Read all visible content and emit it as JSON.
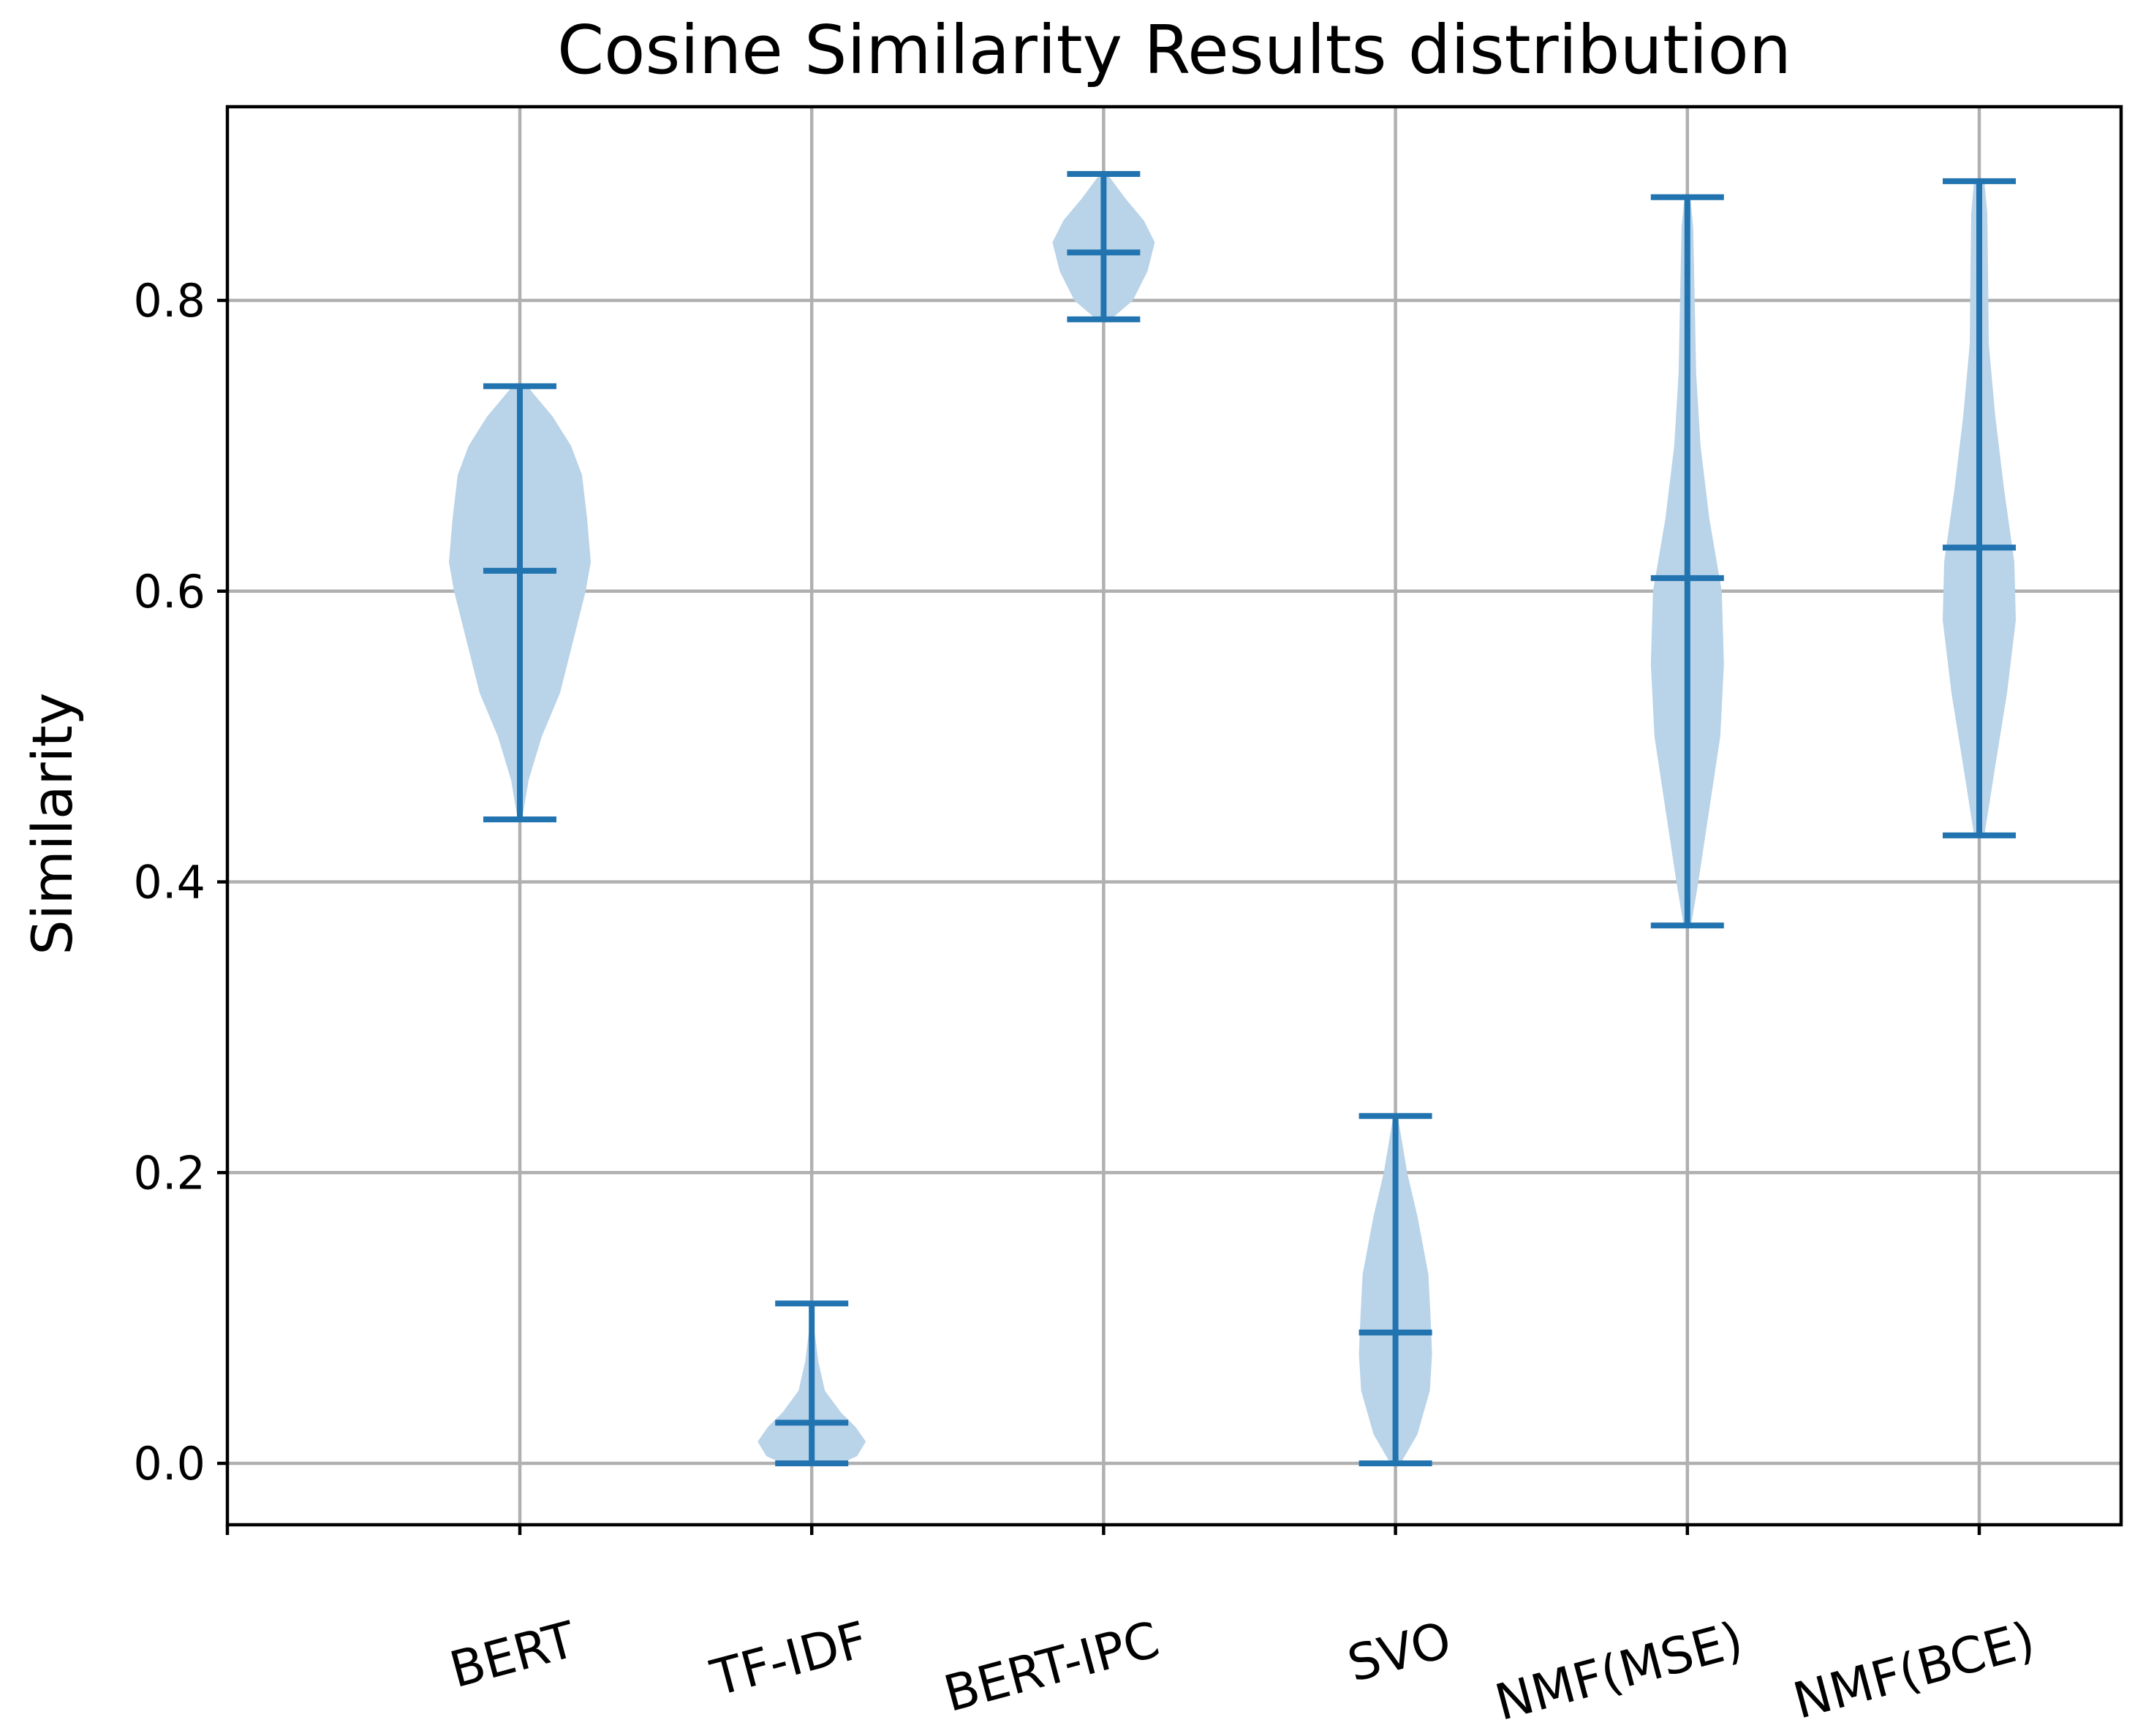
{
  "chart_data": {
    "type": "violin",
    "title": "Cosine Similarity Results distribution",
    "xlabel": "",
    "ylabel": "Similarity",
    "ylim": [
      -0.043,
      0.93
    ],
    "yticks": [
      0.0,
      0.2,
      0.4,
      0.6,
      0.8
    ],
    "ytick_labels": [
      "0.0",
      "0.2",
      "0.4",
      "0.6",
      "0.8"
    ],
    "grid": true,
    "colors": {
      "body": "#b9d3e8",
      "lines": "#2274b0",
      "grid": "#b0b0b0"
    },
    "categories": [
      "BERT",
      "TF-IDF",
      "BERT-IPC",
      "SVO",
      "NMF(MSE)",
      "NMF(BCE)"
    ],
    "violins": [
      {
        "name": "BERT",
        "min": 0.443,
        "median": 0.614,
        "max": 0.741,
        "density": [
          [
            0.443,
            0.003
          ],
          [
            0.47,
            0.012
          ],
          [
            0.5,
            0.03
          ],
          [
            0.53,
            0.055
          ],
          [
            0.56,
            0.07
          ],
          [
            0.6,
            0.09
          ],
          [
            0.62,
            0.097
          ],
          [
            0.65,
            0.092
          ],
          [
            0.68,
            0.085
          ],
          [
            0.7,
            0.07
          ],
          [
            0.72,
            0.045
          ],
          [
            0.741,
            0.01
          ]
        ]
      },
      {
        "name": "TF-IDF",
        "min": 0.0,
        "median": 0.028,
        "max": 0.11,
        "density": [
          [
            0.0,
            0.04
          ],
          [
            0.005,
            0.062
          ],
          [
            0.015,
            0.074
          ],
          [
            0.025,
            0.06
          ],
          [
            0.035,
            0.04
          ],
          [
            0.05,
            0.018
          ],
          [
            0.07,
            0.009
          ],
          [
            0.09,
            0.004
          ],
          [
            0.11,
            0.002
          ]
        ]
      },
      {
        "name": "BERT-IPC",
        "min": 0.787,
        "median": 0.833,
        "max": 0.887,
        "density": [
          [
            0.787,
            0.01
          ],
          [
            0.8,
            0.04
          ],
          [
            0.82,
            0.06
          ],
          [
            0.84,
            0.07
          ],
          [
            0.855,
            0.055
          ],
          [
            0.87,
            0.03
          ],
          [
            0.887,
            0.005
          ]
        ]
      },
      {
        "name": "SVO",
        "min": 0.0,
        "median": 0.09,
        "max": 0.239,
        "density": [
          [
            0.0,
            0.007
          ],
          [
            0.02,
            0.03
          ],
          [
            0.05,
            0.047
          ],
          [
            0.075,
            0.05
          ],
          [
            0.1,
            0.048
          ],
          [
            0.13,
            0.045
          ],
          [
            0.17,
            0.03
          ],
          [
            0.2,
            0.016
          ],
          [
            0.239,
            0.003
          ]
        ]
      },
      {
        "name": "NMF(MSE)",
        "min": 0.37,
        "median": 0.609,
        "max": 0.871,
        "density": [
          [
            0.37,
            0.005
          ],
          [
            0.4,
            0.015
          ],
          [
            0.45,
            0.03
          ],
          [
            0.5,
            0.045
          ],
          [
            0.55,
            0.05
          ],
          [
            0.6,
            0.047
          ],
          [
            0.65,
            0.03
          ],
          [
            0.7,
            0.018
          ],
          [
            0.75,
            0.012
          ],
          [
            0.8,
            0.01
          ],
          [
            0.85,
            0.008
          ],
          [
            0.871,
            0.004
          ]
        ]
      },
      {
        "name": "NMF(BCE)",
        "min": 0.432,
        "median": 0.63,
        "max": 0.882,
        "density": [
          [
            0.432,
            0.007
          ],
          [
            0.48,
            0.022
          ],
          [
            0.53,
            0.038
          ],
          [
            0.58,
            0.05
          ],
          [
            0.62,
            0.048
          ],
          [
            0.67,
            0.034
          ],
          [
            0.72,
            0.022
          ],
          [
            0.77,
            0.013
          ],
          [
            0.82,
            0.012
          ],
          [
            0.86,
            0.011
          ],
          [
            0.882,
            0.007
          ]
        ]
      }
    ]
  }
}
